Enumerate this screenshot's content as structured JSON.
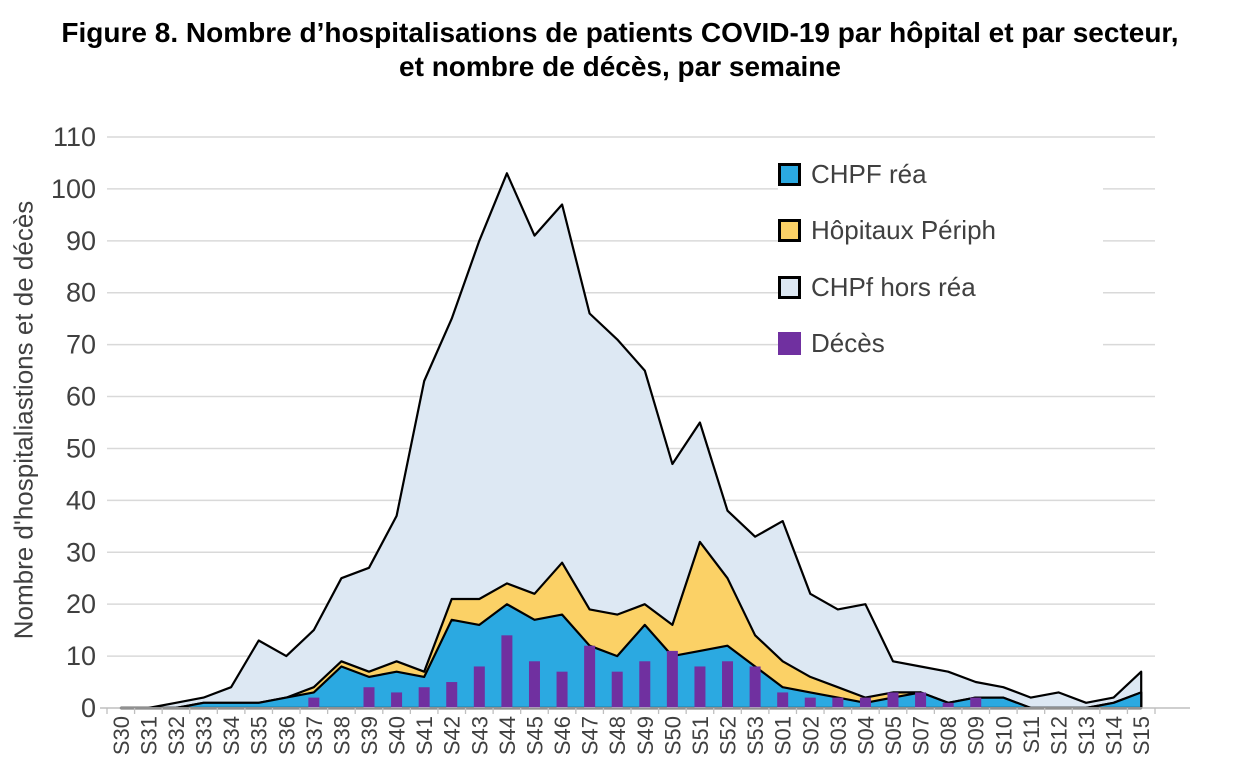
{
  "title": {
    "line1": "Figure 8. Nombre d’hospitalisations de patients COVID-19 par hôpital et par secteur,",
    "line2": "et nombre de décès, par semaine"
  },
  "y_axis": {
    "title": "Nombre d'hospitaliastions et de décès",
    "ticks": [
      0,
      10,
      20,
      30,
      40,
      50,
      60,
      70,
      80,
      90,
      100,
      110
    ],
    "max": 110
  },
  "legend": {
    "items": [
      {
        "label": "CHPF réa",
        "color": "#2BA9E1",
        "border": "#000000"
      },
      {
        "label": "Hôpitaux Périph",
        "color": "#FBD166",
        "border": "#000000"
      },
      {
        "label": "CHPf hors réa",
        "color": "#DDE8F3",
        "border": "#000000"
      },
      {
        "label": "Décès",
        "color": "#7030A0",
        "border": "#7030A0"
      }
    ]
  },
  "colors": {
    "gridline": "#D9D9D9",
    "axis_line": "#BFBFBF",
    "axis_text": "#404040",
    "area_outline": "#000000"
  },
  "chart_data": {
    "type": "area",
    "subtype": "stacked-area-with-bar-overlay",
    "title": "Figure 8. Nombre d’hospitalisations de patients COVID-19 par hôpital et par secteur, et nombre de décès, par semaine",
    "xlabel": "",
    "ylabel": "Nombre d'hospitaliastions et de décès",
    "ylim": [
      0,
      110
    ],
    "grid": true,
    "legend_position": "upper-right-inside",
    "categories": [
      "S30",
      "S31",
      "S32",
      "S33",
      "S34",
      "S35",
      "S36",
      "S37",
      "S38",
      "S39",
      "S40",
      "S41",
      "S42",
      "S43",
      "S44",
      "S45",
      "S46",
      "S47",
      "S48",
      "S49",
      "S50",
      "S51",
      "S52",
      "S53",
      "S01",
      "S02",
      "S03",
      "S04",
      "S05",
      "S07",
      "S08",
      "S09",
      "S10",
      "S11",
      "S12",
      "S13",
      "S14",
      "S15"
    ],
    "series": [
      {
        "name": "CHPF réa",
        "render": "area",
        "stack_order": 1,
        "color": "#2BA9E1",
        "values": [
          0,
          0,
          0,
          1,
          1,
          1,
          2,
          3,
          8,
          6,
          7,
          6,
          17,
          16,
          20,
          17,
          18,
          12,
          10,
          16,
          10,
          11,
          12,
          8,
          4,
          3,
          2,
          1,
          2,
          3,
          1,
          2,
          2,
          0,
          0,
          0,
          1,
          3
        ]
      },
      {
        "name": "Hôpitaux Périph",
        "render": "area",
        "stack_order": 2,
        "color": "#FBD166",
        "values": [
          0,
          0,
          0,
          0,
          0,
          0,
          0,
          1,
          1,
          1,
          2,
          1,
          4,
          5,
          4,
          5,
          10,
          7,
          8,
          4,
          6,
          21,
          13,
          6,
          5,
          3,
          2,
          1,
          1,
          0,
          0,
          0,
          0,
          0,
          0,
          0,
          0,
          0
        ]
      },
      {
        "name": "CHPf hors réa",
        "render": "area",
        "stack_order": 3,
        "color": "#DDE8F3",
        "values": [
          0,
          0,
          1,
          1,
          3,
          12,
          8,
          11,
          16,
          20,
          28,
          56,
          54,
          69,
          79,
          69,
          69,
          57,
          53,
          45,
          31,
          23,
          13,
          19,
          27,
          16,
          15,
          18,
          6,
          5,
          6,
          3,
          2,
          2,
          3,
          1,
          1,
          4
        ]
      },
      {
        "name": "Décès",
        "render": "bar",
        "color": "#7030A0",
        "values": [
          0,
          0,
          0,
          0,
          0,
          0,
          0,
          2,
          0,
          4,
          3,
          4,
          5,
          8,
          14,
          9,
          7,
          12,
          7,
          9,
          11,
          8,
          9,
          8,
          3,
          2,
          2,
          2,
          3,
          3,
          1,
          2,
          0,
          0,
          0,
          0,
          0,
          0
        ]
      }
    ],
    "stacked_totals_note": "total hospitalisations (top line) = sum of the three area series; peak 103 at S44, secondary peak 97 at S46"
  }
}
